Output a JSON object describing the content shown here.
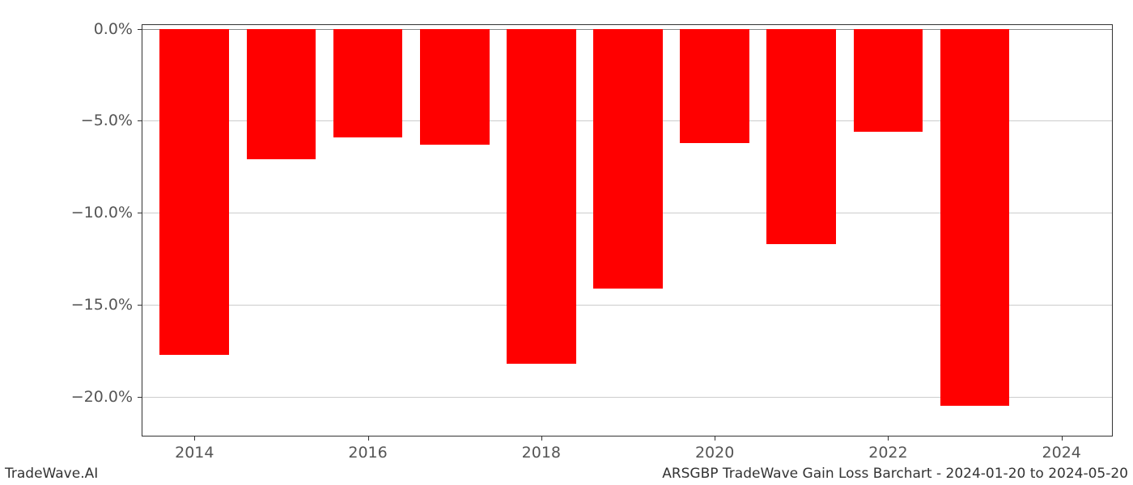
{
  "chart": {
    "type": "bar",
    "years": [
      2014,
      2015,
      2016,
      2017,
      2018,
      2019,
      2020,
      2021,
      2022,
      2023
    ],
    "values": [
      -17.7,
      -7.1,
      -5.9,
      -6.3,
      -18.2,
      -14.1,
      -6.2,
      -11.7,
      -5.6,
      -20.5
    ],
    "bar_color": "#ff0000",
    "background_color": "#ffffff",
    "grid_color": "#cccccc",
    "zero_line_color": "#888888",
    "tick_label_color": "#555555",
    "tick_fontsize": 19,
    "bar_width": 0.8,
    "yaxis": {
      "min": -22.2,
      "max": 0.2,
      "ticks": [
        0.0,
        -5.0,
        -10.0,
        -15.0,
        -20.0
      ],
      "tick_labels": [
        "0.0%",
        "−5.0%",
        "−10.0%",
        "−15.0%",
        "−20.0%"
      ]
    },
    "xaxis": {
      "min": 2013.4,
      "max": 2024.6,
      "ticks": [
        2014,
        2016,
        2018,
        2020,
        2022,
        2024
      ],
      "tick_labels": [
        "2014",
        "2016",
        "2018",
        "2020",
        "2022",
        "2024"
      ]
    }
  },
  "footer": {
    "left": "TradeWave.AI",
    "right": "ARSGBP TradeWave Gain Loss Barchart - 2024-01-20 to 2024-05-20",
    "fontsize": 17,
    "color": "#333333"
  }
}
